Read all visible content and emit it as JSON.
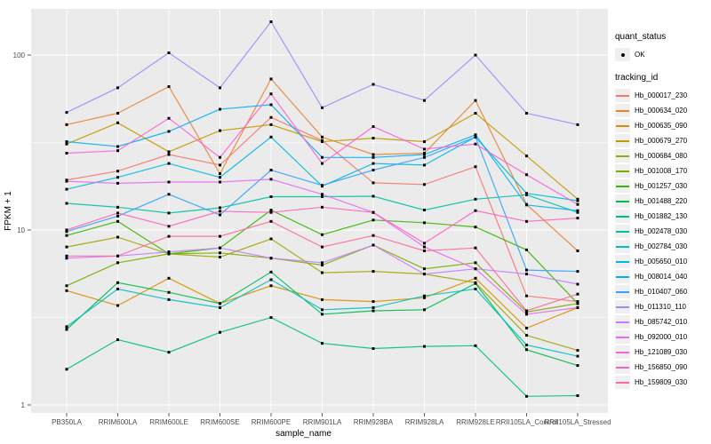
{
  "legend": {
    "quant_status_title": "quant_status",
    "ok_label": "OK",
    "tracking_title": "tracking_id"
  },
  "chart_data": {
    "type": "line",
    "title": "",
    "xlabel": "sample_name",
    "ylabel": "FPKM + 1",
    "y_scale": "log10",
    "ylim": [
      0.9,
      200
    ],
    "y_ticks": [
      "1",
      "10",
      "100"
    ],
    "grid": "on",
    "legend_position": "right",
    "panel_bg": "#ebebeb",
    "grid_color": "#ffffff",
    "point_color": "#000000",
    "tick_label_color": "#4d4d4d",
    "quant_status": "OK",
    "categories": [
      "PB350LA",
      "RRIM600LA",
      "RRIM600LE",
      "RRIM600SE",
      "RRIM600PE",
      "RRIM901LA",
      "RRIM928BA",
      "RRIM928LA",
      "RRIM928LE",
      "RRII105LA_Control",
      "RRII105LA_Stressed"
    ],
    "series": [
      {
        "name": "Hb_000017_230",
        "color": "#F8766D",
        "values": [
          19.3,
          21.7,
          27,
          23.5,
          44,
          32.5,
          18.6,
          18.2,
          23,
          4.2,
          3.9
        ]
      },
      {
        "name": "Hb_000634_020",
        "color": "#EA8331",
        "values": [
          40,
          46.5,
          66,
          21,
          73,
          34,
          27,
          27.5,
          55,
          14,
          7.6
        ]
      },
      {
        "name": "Hb_000635_090",
        "color": "#D89000",
        "values": [
          4.5,
          3.7,
          5.3,
          3.8,
          4.8,
          4.0,
          3.9,
          4.1,
          5.3,
          2.75,
          3.6
        ]
      },
      {
        "name": "Hb_000679_270",
        "color": "#C09B00",
        "values": [
          31,
          41,
          28,
          37,
          40,
          32,
          33.5,
          32,
          46.5,
          26.5,
          15
        ]
      },
      {
        "name": "Hb_000684_080",
        "color": "#A3A500",
        "values": [
          8.0,
          9.1,
          7.3,
          7.0,
          8.9,
          5.7,
          5.8,
          5.6,
          5.0,
          2.5,
          2.05
        ]
      },
      {
        "name": "Hb_001008_170",
        "color": "#7CAE00",
        "values": [
          4.8,
          6.5,
          7.3,
          7.4,
          6.9,
          6.3,
          8.2,
          6.0,
          6.5,
          3.4,
          3.8
        ]
      },
      {
        "name": "Hb_001257_030",
        "color": "#39B600",
        "values": [
          9.3,
          11.2,
          7.3,
          7.9,
          13,
          9.4,
          11.4,
          11,
          10.4,
          7.7,
          3.8
        ]
      },
      {
        "name": "Hb_001488_220",
        "color": "#00BB4E",
        "values": [
          2.7,
          5.0,
          4.4,
          3.8,
          5.75,
          3.3,
          3.45,
          3.5,
          4.95,
          2.07,
          1.68
        ]
      },
      {
        "name": "Hb_001882_130",
        "color": "#00BF7D",
        "values": [
          1.6,
          2.36,
          2.0,
          2.6,
          3.16,
          2.25,
          2.1,
          2.16,
          2.18,
          1.12,
          1.13
        ]
      },
      {
        "name": "Hb_002478_030",
        "color": "#00C1A3",
        "values": [
          14.2,
          13.5,
          12.5,
          13.4,
          15.5,
          15.5,
          15.6,
          13,
          15,
          15.9,
          12.6
        ]
      },
      {
        "name": "Hb_002784_030",
        "color": "#00BFC4",
        "values": [
          2.8,
          4.6,
          4.0,
          3.6,
          5.2,
          3.5,
          3.6,
          4.2,
          4.6,
          2.2,
          1.9
        ]
      },
      {
        "name": "Hb_005650_010",
        "color": "#00BADE",
        "values": [
          17.1,
          20,
          24,
          20,
          34,
          17.8,
          24,
          23.5,
          34,
          16.2,
          14.7
        ]
      },
      {
        "name": "Hb_008014_040",
        "color": "#00B0F6",
        "values": [
          32,
          30,
          36.6,
          49,
          52,
          26,
          26,
          27,
          35,
          13.9,
          12.9
        ]
      },
      {
        "name": "Hb_010407_060",
        "color": "#35A2FF",
        "values": [
          9.8,
          12,
          16,
          12.2,
          22,
          18,
          22,
          26,
          34,
          5.9,
          5.8
        ]
      },
      {
        "name": "Hb_011310_110",
        "color": "#9590FF",
        "values": [
          47,
          65,
          103,
          65,
          155,
          50,
          68,
          55,
          100,
          46.5,
          40
        ]
      },
      {
        "name": "Hb_085742_010",
        "color": "#C77CFF",
        "values": [
          6.9,
          7.1,
          7.5,
          7.9,
          6.9,
          6.5,
          8.2,
          5.6,
          6.0,
          5.6,
          4.9
        ]
      },
      {
        "name": "Hb_092000_010",
        "color": "#E76BF3",
        "values": [
          19,
          18.5,
          18.8,
          18.8,
          19.5,
          16,
          12.6,
          8.0,
          6.0,
          3.3,
          3.6
        ]
      },
      {
        "name": "Hb_121089_030",
        "color": "#FA62DB",
        "values": [
          27.5,
          28.4,
          43.5,
          26,
          60,
          24,
          39,
          29,
          31,
          20.7,
          14
        ]
      },
      {
        "name": "Hb_156850_090",
        "color": "#FF62BC",
        "values": [
          10,
          12.5,
          10.5,
          12.8,
          12.6,
          13.5,
          12.6,
          8.4,
          12.9,
          11.2,
          11.7
        ]
      },
      {
        "name": "Hb_159809_030",
        "color": "#FF6A98",
        "values": [
          7.1,
          7.1,
          9.2,
          9.2,
          11.2,
          8.0,
          9.3,
          7.6,
          7.9,
          3.45,
          4.3
        ]
      }
    ]
  }
}
